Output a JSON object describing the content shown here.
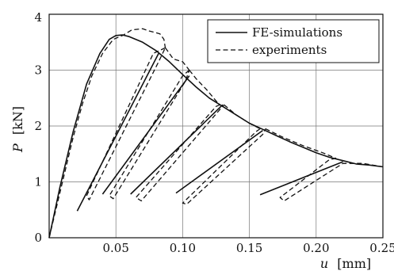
{
  "chart_data": {
    "type": "line",
    "title": "",
    "xlabel_symbol": "u",
    "xlabel_unit": "[mm]",
    "ylabel_symbol": "P",
    "ylabel_unit": "[kN]",
    "xlim": [
      0,
      0.25
    ],
    "ylim": [
      0,
      4
    ],
    "x_ticks": [
      0.05,
      0.1,
      0.15,
      0.2,
      0.25
    ],
    "x_tick_labels": [
      "0.05",
      "0.10",
      "0.15",
      "0.20",
      "0.25"
    ],
    "y_ticks": [
      0,
      1,
      2,
      3,
      4
    ],
    "y_tick_labels": [
      "0",
      "1",
      "2",
      "3",
      "4"
    ],
    "grid": true,
    "legend_position": "top-right",
    "legend": [
      {
        "label": "FE-simulations",
        "style": "solid"
      },
      {
        "label": "experiments",
        "style": "dashed"
      }
    ],
    "series": [
      {
        "name": "FE-simulations",
        "style": "solid",
        "segments": [
          [
            [
              0,
              0
            ],
            [
              0.008,
              0.9
            ],
            [
              0.018,
              1.9
            ],
            [
              0.028,
              2.75
            ],
            [
              0.038,
              3.3
            ],
            [
              0.045,
              3.55
            ],
            [
              0.05,
              3.62
            ],
            [
              0.055,
              3.63
            ],
            [
              0.06,
              3.6
            ],
            [
              0.07,
              3.5
            ],
            [
              0.08,
              3.35
            ],
            [
              0.09,
              3.15
            ],
            [
              0.1,
              2.92
            ],
            [
              0.11,
              2.7
            ],
            [
              0.12,
              2.5
            ],
            [
              0.13,
              2.35
            ],
            [
              0.14,
              2.2
            ],
            [
              0.15,
              2.05
            ],
            [
              0.16,
              1.94
            ],
            [
              0.17,
              1.83
            ],
            [
              0.18,
              1.72
            ],
            [
              0.19,
              1.62
            ],
            [
              0.2,
              1.52
            ],
            [
              0.21,
              1.44
            ],
            [
              0.22,
              1.38
            ],
            [
              0.23,
              1.32
            ],
            [
              0.24,
              1.3
            ],
            [
              0.25,
              1.27
            ]
          ],
          [
            [
              0.021,
              0.48
            ],
            [
              0.082,
              3.3
            ]
          ],
          [
            [
              0.04,
              0.78
            ],
            [
              0.105,
              2.9
            ]
          ],
          [
            [
              0.061,
              0.78
            ],
            [
              0.13,
              2.38
            ]
          ],
          [
            [
              0.095,
              0.8
            ],
            [
              0.16,
              1.92
            ]
          ],
          [
            [
              0.158,
              0.77
            ],
            [
              0.22,
              1.36
            ]
          ]
        ]
      },
      {
        "name": "experiments",
        "style": "dashed",
        "segments": [
          [
            [
              0,
              0
            ],
            [
              0.006,
              0.6
            ],
            [
              0.012,
              1.2
            ],
            [
              0.018,
              1.8
            ],
            [
              0.025,
              2.4
            ],
            [
              0.032,
              2.9
            ],
            [
              0.04,
              3.3
            ],
            [
              0.048,
              3.55
            ],
            [
              0.055,
              3.62
            ],
            [
              0.062,
              3.72
            ],
            [
              0.07,
              3.74
            ],
            [
              0.075,
              3.7
            ],
            [
              0.083,
              3.65
            ],
            [
              0.086,
              3.55
            ],
            [
              0.087,
              3.4
            ]
          ],
          [
            [
              0.087,
              3.4
            ],
            [
              0.078,
              3.3
            ],
            [
              0.028,
              0.75
            ],
            [
              0.03,
              0.68
            ],
            [
              0.082,
              3.15
            ],
            [
              0.087,
              3.4
            ]
          ],
          [
            [
              0.087,
              3.4
            ],
            [
              0.09,
              3.3
            ],
            [
              0.093,
              3.2
            ],
            [
              0.1,
              3.15
            ],
            [
              0.105,
              3.0
            ]
          ],
          [
            [
              0.105,
              3.0
            ],
            [
              0.1,
              2.9
            ],
            [
              0.045,
              0.75
            ],
            [
              0.048,
              0.7
            ],
            [
              0.102,
              2.8
            ],
            [
              0.105,
              3.0
            ]
          ],
          [
            [
              0.105,
              3.0
            ],
            [
              0.11,
              2.85
            ],
            [
              0.118,
              2.65
            ],
            [
              0.125,
              2.45
            ],
            [
              0.128,
              2.38
            ]
          ],
          [
            [
              0.128,
              2.38
            ],
            [
              0.125,
              2.35
            ],
            [
              0.065,
              0.72
            ],
            [
              0.069,
              0.66
            ],
            [
              0.128,
              2.3
            ],
            [
              0.131,
              2.38
            ]
          ],
          [
            [
              0.131,
              2.38
            ],
            [
              0.14,
              2.2
            ],
            [
              0.15,
              2.05
            ],
            [
              0.158,
              1.95
            ]
          ],
          [
            [
              0.158,
              1.95
            ],
            [
              0.155,
              1.9
            ],
            [
              0.1,
              0.62
            ],
            [
              0.103,
              0.6
            ],
            [
              0.16,
              1.85
            ],
            [
              0.162,
              1.95
            ]
          ],
          [
            [
              0.162,
              1.95
            ],
            [
              0.175,
              1.8
            ],
            [
              0.19,
              1.65
            ],
            [
              0.205,
              1.52
            ],
            [
              0.215,
              1.42
            ]
          ],
          [
            [
              0.215,
              1.42
            ],
            [
              0.21,
              1.4
            ],
            [
              0.173,
              0.72
            ],
            [
              0.176,
              0.66
            ],
            [
              0.22,
              1.33
            ],
            [
              0.235,
              1.33
            ],
            [
              0.25,
              1.27
            ]
          ]
        ]
      }
    ]
  }
}
